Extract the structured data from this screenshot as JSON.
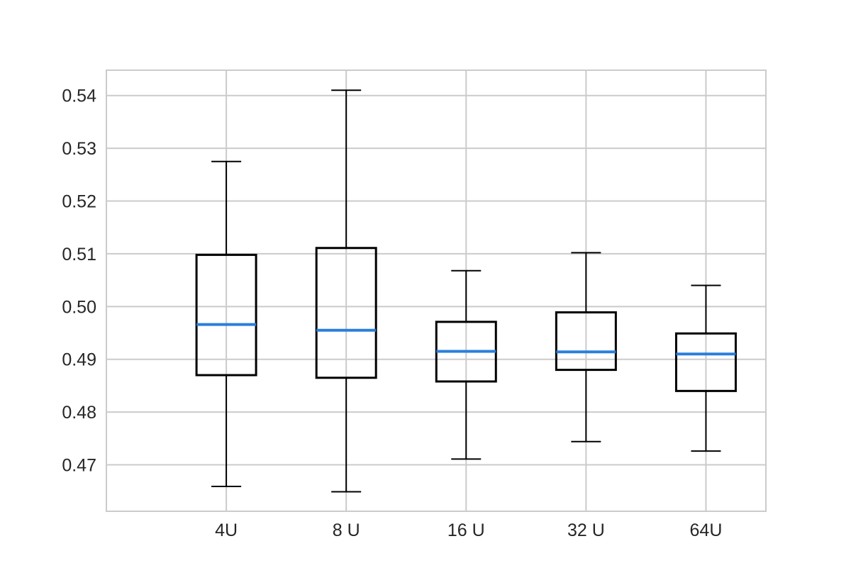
{
  "chart_data": {
    "type": "box",
    "title": "",
    "xlabel": "",
    "ylabel": "",
    "categories": [
      "4U",
      "8 U",
      "16 U",
      "32 U",
      "64U"
    ],
    "boxes": [
      {
        "label": "4U",
        "whislo": 0.4659,
        "q1": 0.487,
        "median": 0.4966,
        "q3": 0.5098,
        "whishi": 0.5275
      },
      {
        "label": "8 U",
        "whislo": 0.4649,
        "q1": 0.4865,
        "median": 0.4955,
        "q3": 0.5111,
        "whishi": 0.541
      },
      {
        "label": "16 U",
        "whislo": 0.4711,
        "q1": 0.4858,
        "median": 0.4915,
        "q3": 0.4971,
        "whishi": 0.5068
      },
      {
        "label": "32 U",
        "whislo": 0.4744,
        "q1": 0.488,
        "median": 0.4914,
        "q3": 0.4989,
        "whishi": 0.5102
      },
      {
        "label": "64U",
        "whislo": 0.4726,
        "q1": 0.484,
        "median": 0.491,
        "q3": 0.4949,
        "whishi": 0.504
      }
    ],
    "x_positions": [
      1,
      2,
      3,
      4,
      5
    ],
    "xlim": [
      0,
      5.5
    ],
    "ylim": [
      0.4612,
      0.5448
    ],
    "yticks": [
      0.47,
      0.48,
      0.49,
      0.5,
      0.51,
      0.52,
      0.53,
      0.54
    ],
    "ytick_labels": [
      "0.47",
      "0.48",
      "0.49",
      "0.50",
      "0.51",
      "0.52",
      "0.53",
      "0.54"
    ],
    "grid": true,
    "colors": {
      "box": "#000000",
      "median": "#2a7fdb",
      "grid": "#cbcbcb",
      "text": "#262626"
    }
  }
}
